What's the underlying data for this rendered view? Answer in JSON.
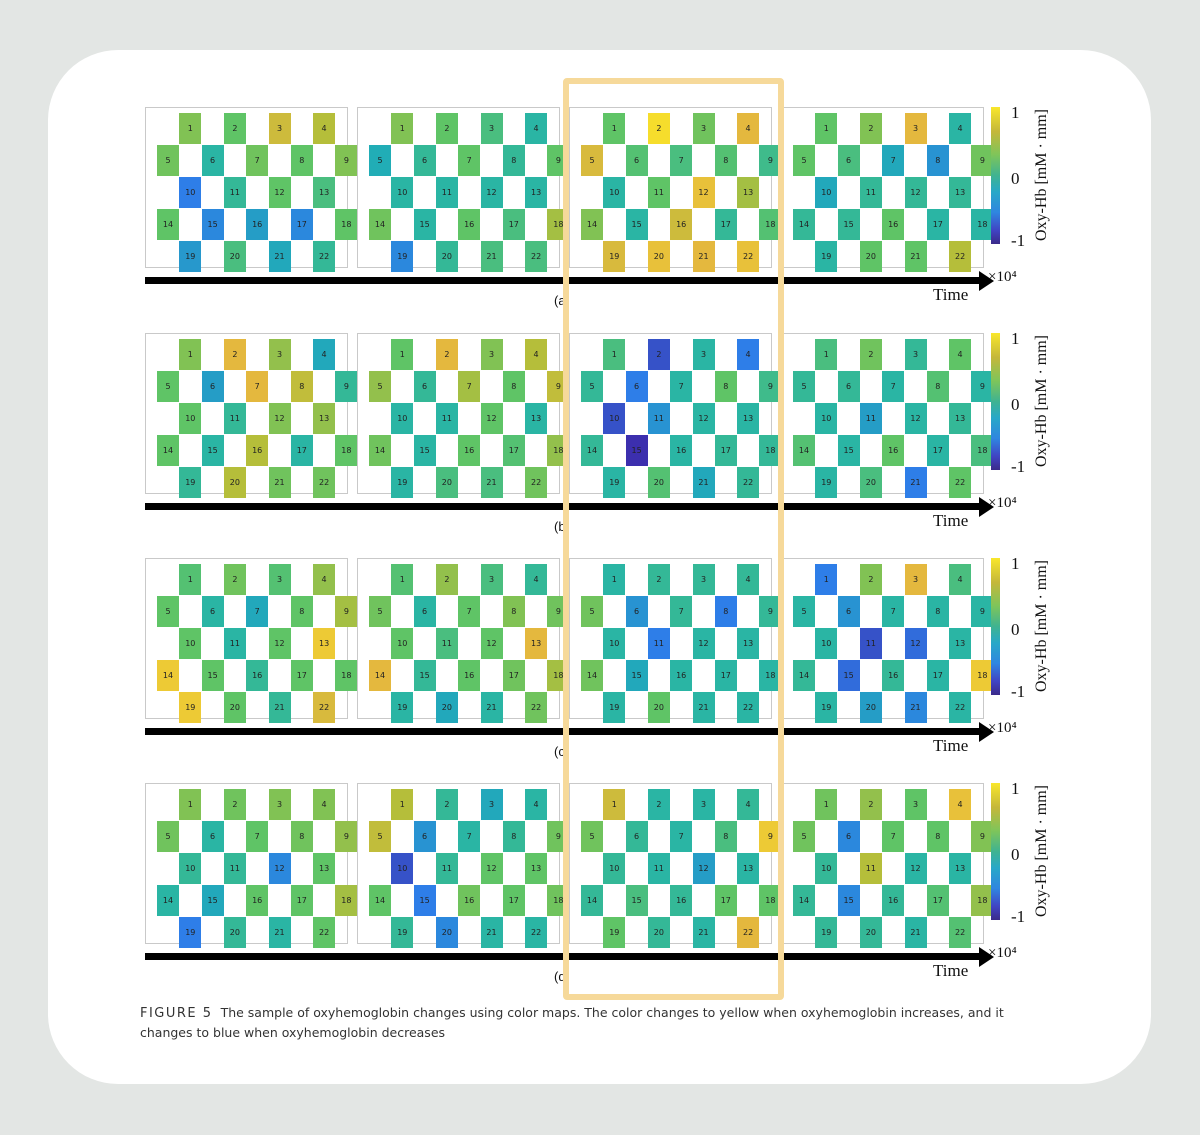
{
  "figure": {
    "caption_label": "FIGURE 5",
    "caption_text": "The sample of oxyhemoglobin changes using color maps. The color changes to yellow when oxyhemoglobin increases, and it changes to blue when oxyhemoglobin decreases",
    "x_axis_label": "Time",
    "scale_factor": "×10⁴",
    "colorbar": {
      "label": "Oxy-Hb [mM · mm]",
      "ticks": [
        "1",
        "0",
        "-1"
      ],
      "range": [
        -1,
        1
      ]
    },
    "channel_grid": {
      "row_counts": [
        4,
        5,
        4,
        5,
        4
      ],
      "channels": [
        "1",
        "2",
        "3",
        "4",
        "5",
        "6",
        "7",
        "8",
        "9",
        "10",
        "11",
        "12",
        "13",
        "14",
        "15",
        "16",
        "17",
        "18",
        "19",
        "20",
        "21",
        "22"
      ]
    },
    "panels": [
      {
        "label": "(a)",
        "frames": [
          [
            0.4,
            0.3,
            0.65,
            0.55,
            0.35,
            0.05,
            0.35,
            0.3,
            0.4,
            -0.5,
            0.1,
            0.3,
            0.2,
            0.3,
            -0.4,
            -0.2,
            -0.4,
            0.3,
            -0.25,
            0.2,
            -0.1,
            0.1
          ],
          [
            0.4,
            0.3,
            0.2,
            0.05,
            -0.05,
            0.1,
            0.3,
            0.1,
            0.3,
            0.05,
            0.05,
            0.05,
            0.05,
            0.35,
            0.05,
            0.3,
            0.2,
            0.5,
            -0.4,
            0.1,
            0.2,
            0.2
          ],
          [
            0.3,
            0.95,
            0.35,
            0.75,
            0.7,
            0.25,
            0.2,
            0.25,
            0.15,
            0.05,
            0.3,
            0.8,
            0.5,
            0.4,
            0.05,
            0.65,
            0.1,
            0.25,
            0.7,
            0.8,
            0.75,
            0.8
          ],
          [
            0.3,
            0.4,
            0.75,
            0.05,
            0.3,
            0.2,
            -0.1,
            -0.3,
            0.35,
            -0.1,
            0.1,
            0.1,
            0.1,
            0.1,
            0.1,
            0.3,
            0.05,
            0.05,
            0.05,
            0.3,
            0.3,
            0.55
          ]
        ]
      },
      {
        "label": "(b)",
        "frames": [
          [
            0.4,
            0.75,
            0.45,
            -0.1,
            0.3,
            -0.2,
            0.75,
            0.6,
            0.1,
            0.3,
            0.1,
            0.4,
            0.45,
            0.3,
            0.05,
            0.55,
            0.05,
            0.3,
            0.1,
            0.55,
            0.35,
            0.35
          ],
          [
            0.3,
            0.75,
            0.4,
            0.55,
            0.45,
            0.1,
            0.5,
            0.3,
            0.6,
            0.05,
            0.05,
            0.3,
            0.05,
            0.35,
            0.05,
            0.3,
            0.25,
            0.45,
            0.05,
            0.2,
            0.2,
            0.35
          ],
          [
            0.2,
            -0.75,
            0.05,
            -0.5,
            0.1,
            -0.5,
            0.05,
            0.3,
            0.15,
            -0.75,
            -0.3,
            0.05,
            0.05,
            0.1,
            -0.95,
            0.05,
            0.1,
            0.1,
            0.05,
            0.25,
            -0.1,
            0.1
          ],
          [
            0.2,
            0.35,
            0.1,
            0.3,
            0.1,
            0.1,
            0.05,
            0.25,
            0.05,
            0.05,
            -0.2,
            0.05,
            0.1,
            0.25,
            0.05,
            0.3,
            0.05,
            0.2,
            0.05,
            0.2,
            -0.5,
            0.3
          ]
        ]
      },
      {
        "label": "(c)",
        "frames": [
          [
            0.25,
            0.35,
            0.25,
            0.45,
            0.3,
            0.05,
            -0.1,
            0.3,
            0.5,
            0.3,
            0.05,
            0.3,
            0.85,
            0.85,
            0.3,
            0.1,
            0.3,
            0.3,
            0.85,
            0.3,
            0.1,
            0.7
          ],
          [
            0.25,
            0.45,
            0.2,
            0.1,
            0.35,
            0.05,
            0.3,
            0.4,
            0.35,
            0.3,
            0.2,
            0.3,
            0.75,
            0.75,
            0.1,
            0.3,
            0.35,
            0.5,
            0.05,
            -0.1,
            0.05,
            0.35
          ],
          [
            0.05,
            0.1,
            0.1,
            0.1,
            0.35,
            -0.3,
            0.1,
            -0.5,
            0.1,
            0.05,
            -0.5,
            0.05,
            0.05,
            0.35,
            -0.1,
            0.05,
            0.05,
            0.05,
            0.05,
            0.3,
            0.05,
            0.05
          ],
          [
            -0.5,
            0.4,
            0.75,
            0.2,
            0.05,
            -0.3,
            0.05,
            0.05,
            0.05,
            0.05,
            -0.75,
            -0.6,
            0.05,
            0.1,
            -0.6,
            0.1,
            0.05,
            0.85,
            0.05,
            -0.2,
            -0.4,
            0.05
          ]
        ]
      },
      {
        "label": "(d)",
        "frames": [
          [
            0.4,
            0.35,
            0.4,
            0.4,
            0.35,
            0.05,
            0.3,
            0.35,
            0.45,
            0.1,
            0.1,
            -0.4,
            0.3,
            0.05,
            -0.1,
            0.3,
            0.3,
            0.5,
            -0.5,
            0.1,
            0.05,
            0.3
          ],
          [
            0.55,
            0.1,
            -0.1,
            0.05,
            0.6,
            -0.3,
            0.05,
            0.1,
            0.35,
            -0.75,
            0.1,
            0.3,
            0.3,
            0.3,
            -0.5,
            0.35,
            0.3,
            0.35,
            0.1,
            -0.4,
            0.05,
            0.05
          ],
          [
            0.65,
            0.05,
            0.05,
            0.1,
            0.35,
            0.1,
            0.05,
            0.2,
            0.85,
            0.1,
            0.05,
            -0.2,
            0.05,
            0.1,
            0.2,
            0.1,
            0.3,
            0.3,
            0.3,
            0.1,
            0.05,
            0.75
          ],
          [
            0.35,
            0.45,
            0.3,
            0.8,
            0.35,
            -0.4,
            0.3,
            0.3,
            0.4,
            0.1,
            0.55,
            0.05,
            0.05,
            0.1,
            -0.4,
            0.1,
            0.25,
            0.45,
            0.1,
            0.1,
            0.05,
            0.25
          ]
        ]
      }
    ]
  }
}
